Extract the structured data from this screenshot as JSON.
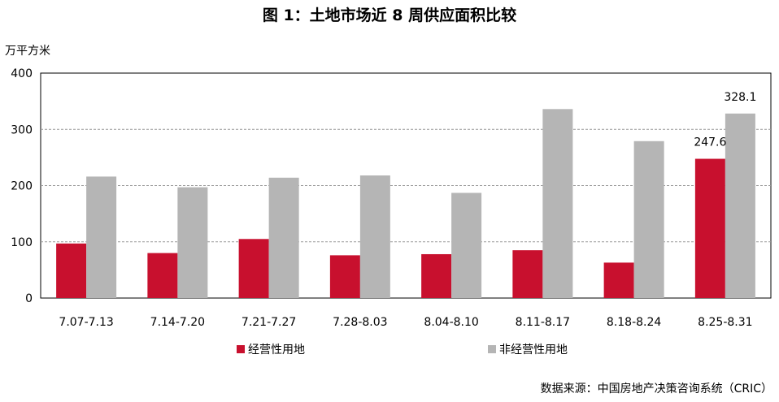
{
  "title": "图 1：土地市场近 8 周供应面积比较",
  "y_unit": "万平方米",
  "source": "数据来源：中国房地产决策咨询系统（CRIC）",
  "colors": {
    "series1": "#c8102e",
    "series2": "#b5b5b5",
    "grid": "#999999",
    "axis": "#000000"
  },
  "chart_data": {
    "type": "bar",
    "categories": [
      "7.07-7.13",
      "7.14-7.20",
      "7.21-7.27",
      "7.28-8.03",
      "8.04-8.10",
      "8.11-8.17",
      "8.18-8.24",
      "8.25-8.31"
    ],
    "series": [
      {
        "name": "经营性用地",
        "values": [
          97,
          80,
          105,
          76,
          78,
          85,
          63,
          247.6
        ]
      },
      {
        "name": "非经营性用地",
        "values": [
          216,
          197,
          214,
          218,
          187,
          336,
          279,
          328.1
        ]
      }
    ],
    "data_labels": [
      {
        "series": 0,
        "index": 7,
        "text": "247.6"
      },
      {
        "series": 1,
        "index": 7,
        "text": "328.1"
      }
    ],
    "ylim": [
      0,
      400
    ],
    "yticks": [
      0,
      100,
      200,
      300,
      400
    ],
    "grid": true,
    "legend_position": "bottom-left"
  }
}
